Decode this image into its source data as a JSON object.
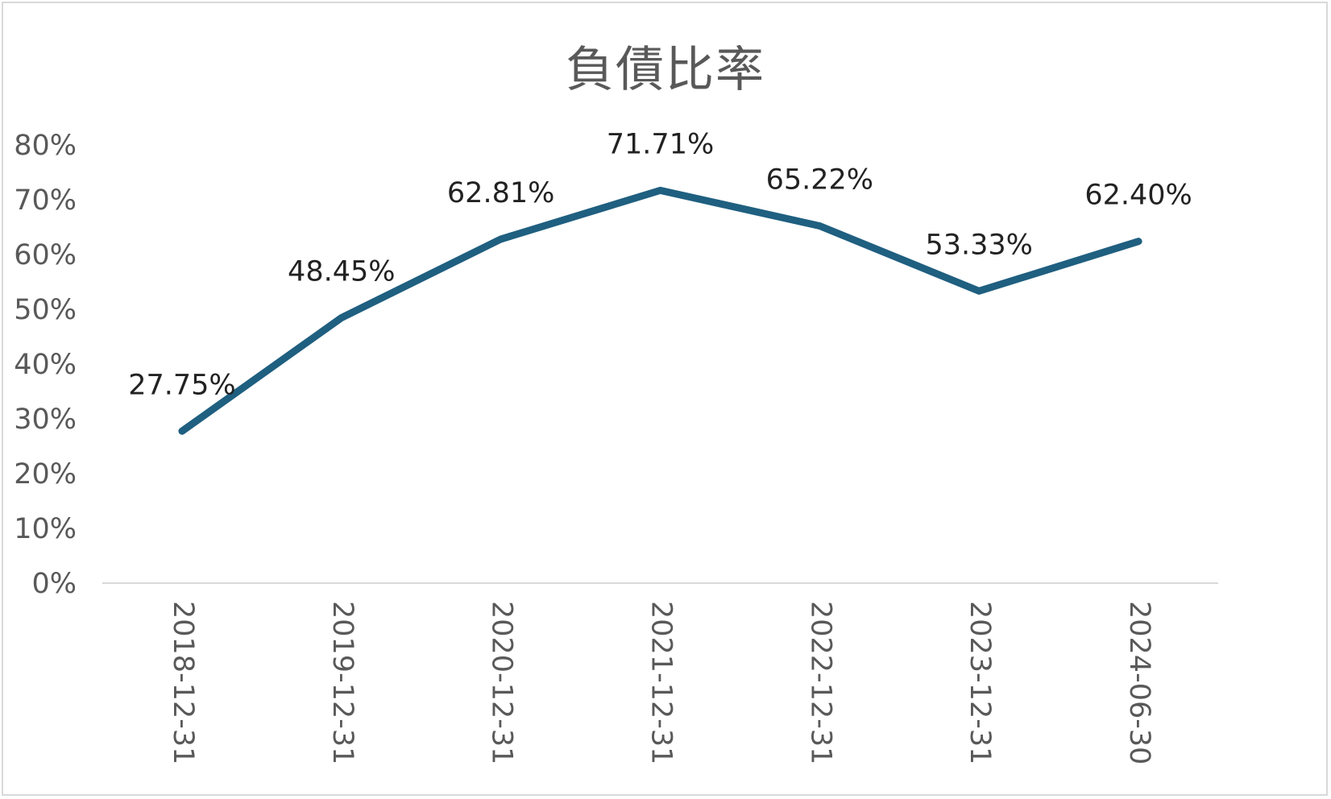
{
  "chart_data": {
    "type": "line",
    "title": "負債比率",
    "categories": [
      "2018-12-31",
      "2019-12-31",
      "2020-12-31",
      "2021-12-31",
      "2022-12-31",
      "2023-12-31",
      "2024-06-30"
    ],
    "series": [
      {
        "values": [
          27.75,
          48.45,
          62.81,
          71.71,
          65.22,
          53.33,
          62.4
        ],
        "labels": [
          "27.75%",
          "48.45%",
          "62.81%",
          "71.71%",
          "65.22%",
          "53.33%",
          "62.40%"
        ],
        "color": "#1f5f80"
      }
    ],
    "yticks": [
      "0%",
      "10%",
      "20%",
      "30%",
      "40%",
      "50%",
      "60%",
      "70%",
      "80%"
    ],
    "ylim": [
      0,
      80
    ],
    "ylabel": "",
    "xlabel": "",
    "grid": false,
    "legend": "none",
    "axis_color": "#d9d9d9"
  }
}
